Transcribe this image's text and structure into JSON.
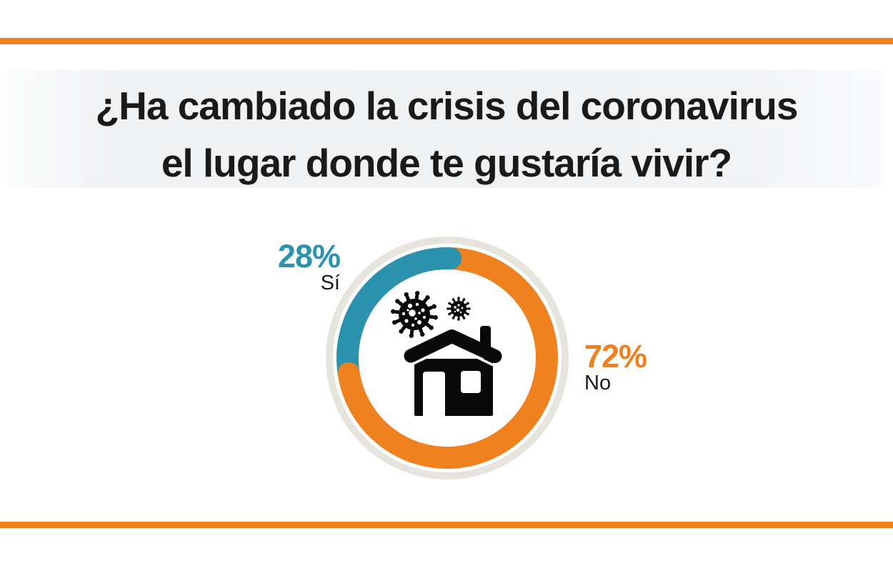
{
  "title": {
    "line1": "¿Ha cambiado la crisis del coronavirus",
    "line2": "el lugar donde te gustaría vivir?"
  },
  "colors": {
    "orange": "#F0811F",
    "teal": "#2B93AE",
    "ring_background": "#E6E4DC",
    "icon_black": "#0A0A0A",
    "text_black": "#1A1A1A",
    "white": "#FFFFFF"
  },
  "chart_data": {
    "type": "pie",
    "donut": true,
    "title": "¿Ha cambiado la crisis del coronavirus el lugar donde te gustaría vivir?",
    "categories": [
      "Sí",
      "No"
    ],
    "values": [
      28,
      72
    ],
    "unit": "%",
    "series_colors": [
      "#2B93AE",
      "#F0811F"
    ],
    "rotation_deg": 2,
    "labels": [
      {
        "value": "28%",
        "category": "Sí"
      },
      {
        "value": "72%",
        "category": "No"
      }
    ],
    "legend_position": "left and right of donut",
    "center_icons": [
      "coronavirus-icon-large",
      "coronavirus-icon-small",
      "house-icon"
    ]
  }
}
